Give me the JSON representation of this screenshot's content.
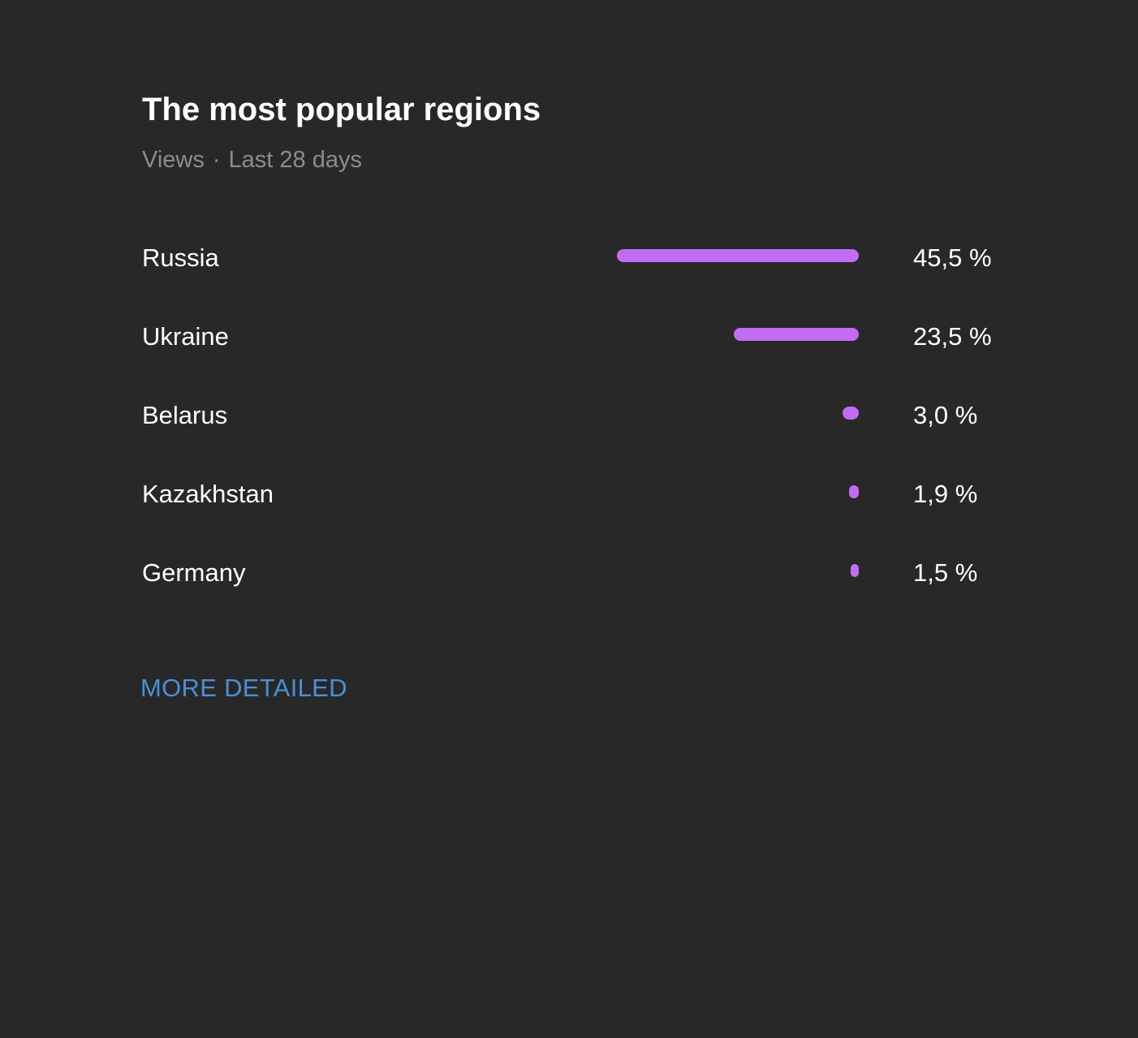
{
  "widget": {
    "title": "The most popular regions",
    "subtitle_metric": "Views",
    "subtitle_separator": "·",
    "subtitle_period": "Last 28 days",
    "bar_color": "#c26cf4",
    "link_color": "#4a8fd8",
    "more_link_label": "MORE DETAILED"
  },
  "regions": [
    {
      "name": "Russia",
      "value_label": "45,5 %",
      "percent": 45.5
    },
    {
      "name": "Ukraine",
      "value_label": "23,5 %",
      "percent": 23.5
    },
    {
      "name": "Belarus",
      "value_label": "3,0 %",
      "percent": 3.0
    },
    {
      "name": "Kazakhstan",
      "value_label": "1,9 %",
      "percent": 1.9
    },
    {
      "name": "Germany",
      "value_label": "1,5 %",
      "percent": 1.5
    }
  ]
}
